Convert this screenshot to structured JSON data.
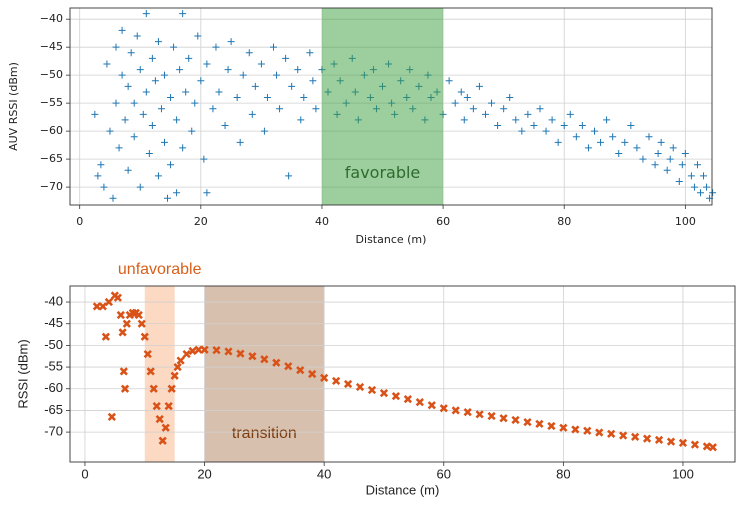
{
  "chart_data": [
    {
      "type": "scatter",
      "marker": "+",
      "color": "#1f77b4",
      "grid": true,
      "x_label": "Distance (m)",
      "y_label": "AUV RSSI (dBm)",
      "xlim": [
        -1.6,
        104.4
      ],
      "ylim": [
        -73.2,
        -38
      ],
      "xticks": [
        0,
        20,
        40,
        60,
        80,
        100
      ],
      "yticks": [
        {
          "value": -40,
          "label": "−40"
        },
        {
          "value": -45,
          "label": "−45"
        },
        {
          "value": -50,
          "label": "−50"
        },
        {
          "value": -55,
          "label": "−55"
        },
        {
          "value": -60,
          "label": "−60"
        },
        {
          "value": -65,
          "label": "−65"
        },
        {
          "value": -70,
          "label": "−70"
        }
      ],
      "regions": [
        {
          "x0": 40,
          "x1": 60,
          "label": "favorable",
          "color": "#3c9e3c",
          "text_color": "#2e6b2e"
        }
      ],
      "x": [
        2.5,
        3,
        3.5,
        4,
        4.5,
        5,
        5.5,
        6,
        6,
        6.5,
        7,
        7,
        7.5,
        8,
        8,
        8.5,
        9,
        9,
        9.5,
        10,
        10,
        10.5,
        11,
        11,
        11.5,
        12,
        12,
        12.5,
        13,
        13,
        13.5,
        14,
        14,
        14.5,
        15,
        15,
        15.5,
        16,
        16,
        16.5,
        17,
        17,
        17.5,
        18,
        18.5,
        19,
        19.5,
        20,
        20.5,
        21,
        21,
        22,
        22.5,
        23,
        24,
        24.5,
        25,
        26,
        26.5,
        27,
        28,
        28.5,
        29,
        30,
        30.5,
        31,
        32,
        32.5,
        33,
        34,
        34.5,
        35,
        36,
        36.5,
        37,
        38,
        38.5,
        39,
        40,
        41,
        42,
        42.5,
        43,
        44,
        45,
        45.5,
        46,
        47,
        48,
        48.5,
        49,
        50,
        51,
        51.5,
        52,
        53,
        54,
        54.5,
        55,
        56,
        57,
        57.5,
        58,
        59,
        60,
        61,
        62,
        63,
        63.5,
        64,
        65,
        66,
        67,
        68,
        69,
        70,
        71,
        72,
        73,
        74,
        75,
        76,
        77,
        78,
        79,
        80,
        81,
        82,
        83,
        84,
        85,
        86,
        87,
        88,
        89,
        90,
        91,
        92,
        93,
        94,
        95,
        95.5,
        96,
        97,
        97.5,
        98,
        99,
        99.5,
        100,
        101,
        101.5,
        102,
        102.5,
        103,
        103.5,
        104,
        104.5
      ],
      "values": [
        -57,
        -68,
        -66,
        -70,
        -48,
        -60,
        -72,
        -45,
        -55,
        -63,
        -50,
        -42,
        -58,
        -67,
        -52,
        -46,
        -61,
        -55,
        -43,
        -49,
        -70,
        -57,
        -39,
        -53,
        -64,
        -47,
        -59,
        -51,
        -68,
        -44,
        -56,
        -62,
        -50,
        -72,
        -54,
        -66,
        -45,
        -71,
        -58,
        -49,
        -39,
        -63,
        -53,
        -47,
        -60,
        -55,
        -43,
        -51,
        -65,
        -71,
        -48,
        -56,
        -45,
        -53,
        -59,
        -49,
        -44,
        -54,
        -62,
        -50,
        -46,
        -57,
        -52,
        -48,
        -60,
        -54,
        -45,
        -50,
        -56,
        -47,
        -68,
        -52,
        -49,
        -58,
        -54,
        -46,
        -51,
        -56,
        -49,
        -53,
        -48,
        -57,
        -51,
        -55,
        -47,
        -53,
        -58,
        -50,
        -54,
        -49,
        -56,
        -52,
        -48,
        -55,
        -57,
        -51,
        -54,
        -49,
        -56,
        -52,
        -58,
        -50,
        -54,
        -53,
        -57,
        -51,
        -55,
        -53,
        -58,
        -54,
        -56,
        -52,
        -57,
        -55,
        -59,
        -56,
        -54,
        -58,
        -60,
        -57,
        -59,
        -56,
        -60,
        -58,
        -62,
        -59,
        -57,
        -61,
        -59,
        -63,
        -60,
        -62,
        -58,
        -61,
        -64,
        -62,
        -59,
        -63,
        -65,
        -61,
        -66,
        -64,
        -62,
        -67,
        -65,
        -63,
        -69,
        -66,
        -64,
        -68,
        -70,
        -66,
        -71,
        -68,
        -70,
        -72,
        -71
      ]
    },
    {
      "type": "scatter",
      "marker": "x",
      "color": "#d95319",
      "grid": true,
      "x_label": "Distance (m)",
      "y_label": "RSSI (dBm)",
      "xlim": [
        -2.5,
        108.7
      ],
      "ylim": [
        -76.9,
        -36.3
      ],
      "xticks": [
        0,
        20,
        40,
        60,
        80,
        100
      ],
      "yticks": [
        -40,
        -45,
        -50,
        -55,
        -60,
        -65,
        -70
      ],
      "regions": [
        {
          "x0": 10,
          "x1": 15,
          "label": "unfavorable",
          "color": "#fcd9c2",
          "text_color": "#d95f1a"
        },
        {
          "x0": 20,
          "x1": 40,
          "label": "transition",
          "color": "#d8c0ae",
          "text_color": "#7a3d10"
        }
      ],
      "x": [
        2,
        3,
        3.5,
        4,
        4.5,
        5,
        5.5,
        6,
        6.3,
        6.5,
        6.7,
        7,
        7.5,
        8,
        8.5,
        9,
        9.5,
        10,
        10.5,
        11,
        11.5,
        12,
        12.5,
        13,
        13.5,
        14,
        14.5,
        15,
        15.5,
        16,
        17,
        18,
        19,
        20,
        22,
        24,
        26,
        28,
        30,
        32,
        34,
        36,
        38,
        40,
        42,
        44,
        46,
        48,
        50,
        52,
        54,
        56,
        58,
        60,
        62,
        64,
        66,
        68,
        70,
        72,
        74,
        76,
        78,
        80,
        82,
        84,
        86,
        88,
        90,
        92,
        94,
        96,
        98,
        100,
        102,
        104,
        105
      ],
      "values": [
        -41,
        -41,
        -48,
        -40,
        -66.5,
        -38.5,
        -39,
        -43,
        -47,
        -56,
        -60,
        -45,
        -43,
        -42.5,
        -42.5,
        -43,
        -45,
        -48,
        -52,
        -56,
        -60,
        -64,
        -67,
        -72,
        -69,
        -64,
        -60,
        -57,
        -55,
        -53.5,
        -52,
        -51.3,
        -51,
        -51,
        -51.1,
        -51.4,
        -51.9,
        -52.5,
        -53.2,
        -54,
        -54.8,
        -55.7,
        -56.6,
        -57.5,
        -58.2,
        -58.9,
        -59.6,
        -60.3,
        -61,
        -61.7,
        -62.4,
        -63.1,
        -63.8,
        -64.5,
        -65,
        -65.4,
        -65.9,
        -66.3,
        -66.8,
        -67.2,
        -67.7,
        -68.1,
        -68.6,
        -69,
        -69.4,
        -69.7,
        -70.1,
        -70.4,
        -70.8,
        -71.1,
        -71.5,
        -71.8,
        -72.2,
        -72.5,
        -72.9,
        -73.3,
        -73.5
      ]
    }
  ]
}
